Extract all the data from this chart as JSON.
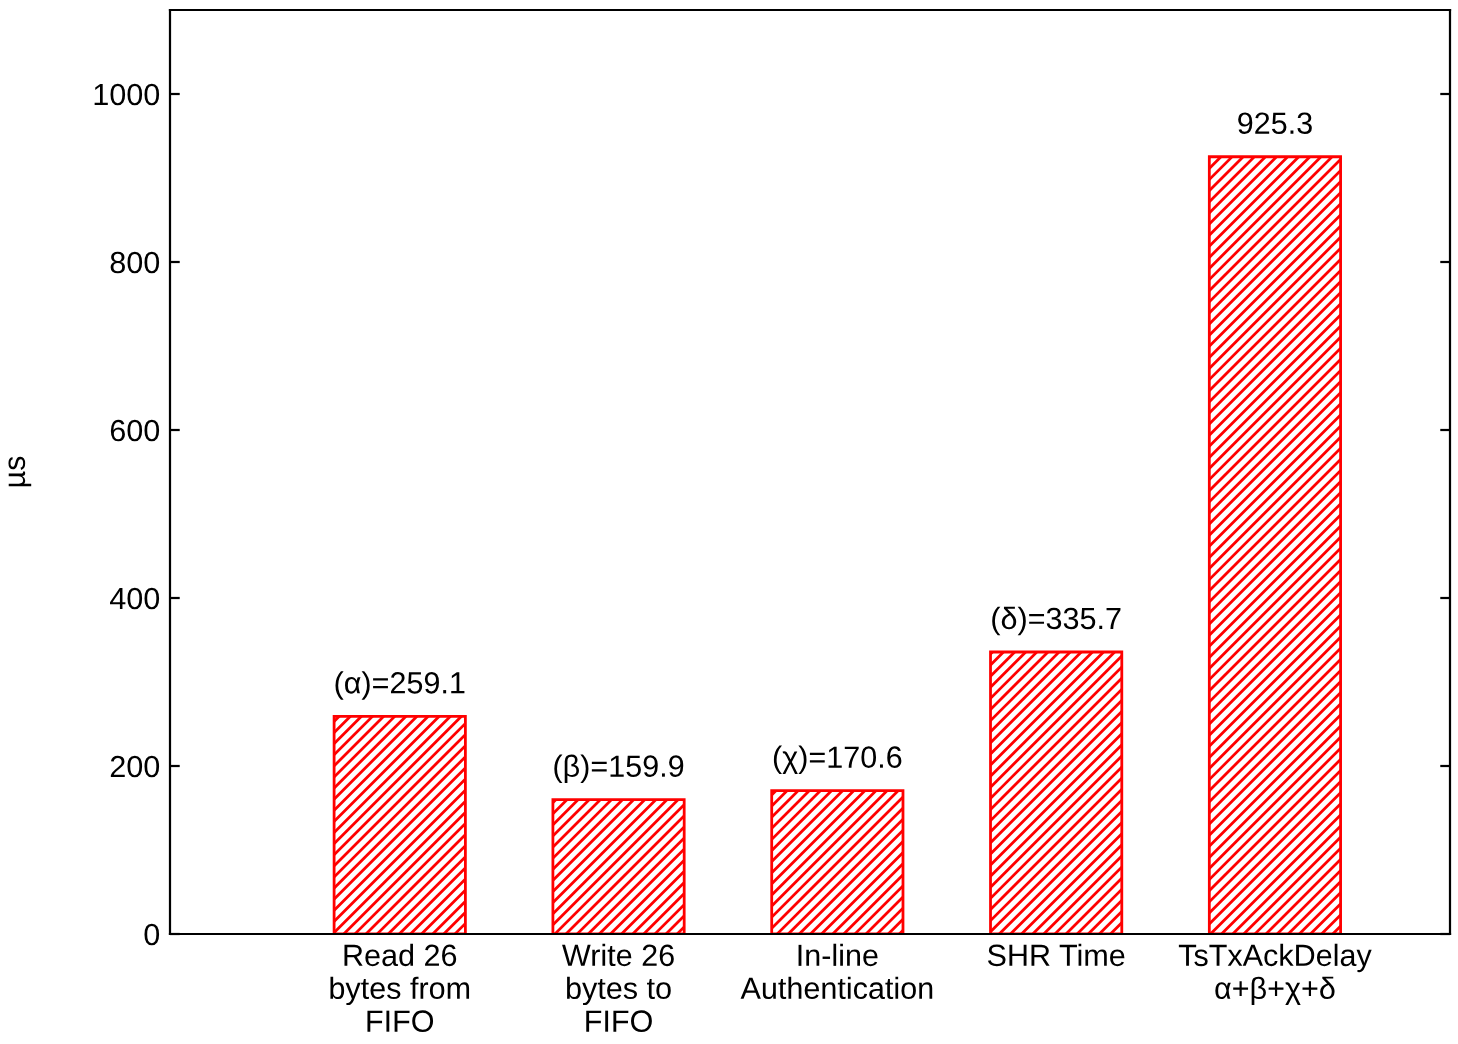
{
  "chart_data": {
    "type": "bar",
    "ylabel": "µs",
    "categories": [
      "Read 26\nbytes from\nFIFO",
      "Write 26\nbytes to\nFIFO",
      "In-line\nAuthentication",
      "SHR Time",
      "TsTxAckDelay\nα+β+χ+δ"
    ],
    "values": [
      259.1,
      159.9,
      170.6,
      335.7,
      925.3
    ],
    "value_labels": [
      "(α)=259.1",
      "(β)=159.9",
      "(χ)=170.6",
      "(δ)=335.7",
      "925.3"
    ],
    "color": "#ff0000",
    "ylim": [
      0,
      1100
    ],
    "yticks": [
      0,
      200,
      400,
      600,
      800,
      1000
    ],
    "grid": false,
    "legend": false
  }
}
